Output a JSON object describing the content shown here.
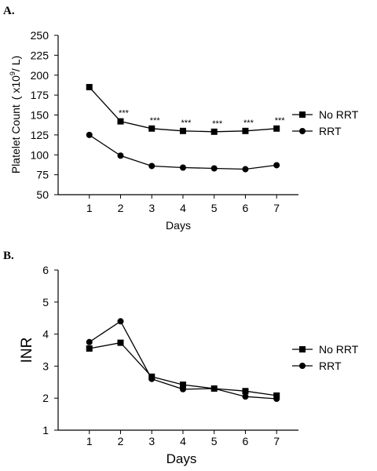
{
  "chart_data": [
    {
      "panel": "A.",
      "type": "line",
      "xlabel": "Days",
      "ylabel": "Platelet Count",
      "ylabel_unit_prefix": "( x10",
      "ylabel_unit_exp": "9",
      "ylabel_unit_suffix": "/ L)",
      "x": [
        1,
        2,
        3,
        4,
        5,
        6,
        7
      ],
      "xlim": [
        0,
        7.7
      ],
      "ylim": [
        50,
        250
      ],
      "yticks": [
        50,
        75,
        100,
        125,
        150,
        175,
        200,
        225,
        250
      ],
      "legend_position": "right",
      "series": [
        {
          "name": "No RRT",
          "marker": "square",
          "values": [
            185,
            142,
            133,
            130,
            129,
            130,
            133
          ]
        },
        {
          "name": "RRT",
          "marker": "circle",
          "values": [
            125,
            99,
            86,
            84,
            83,
            82,
            87
          ]
        }
      ],
      "annotations": {
        "text": "***",
        "days": [
          2,
          3,
          4,
          5,
          6,
          7
        ]
      }
    },
    {
      "panel": "B.",
      "type": "line",
      "xlabel": "Days",
      "ylabel": "INR",
      "x": [
        1,
        2,
        3,
        4,
        5,
        6,
        7
      ],
      "xlim": [
        0,
        7.7
      ],
      "ylim": [
        1,
        6
      ],
      "yticks": [
        1,
        2,
        3,
        4,
        5,
        6
      ],
      "legend_position": "right",
      "series": [
        {
          "name": "No RRT",
          "marker": "square",
          "values": [
            3.55,
            3.73,
            2.67,
            2.42,
            2.3,
            2.22,
            2.08
          ]
        },
        {
          "name": "RRT",
          "marker": "circle",
          "values": [
            3.75,
            4.4,
            2.6,
            2.28,
            2.3,
            2.05,
            1.98
          ]
        }
      ]
    }
  ]
}
